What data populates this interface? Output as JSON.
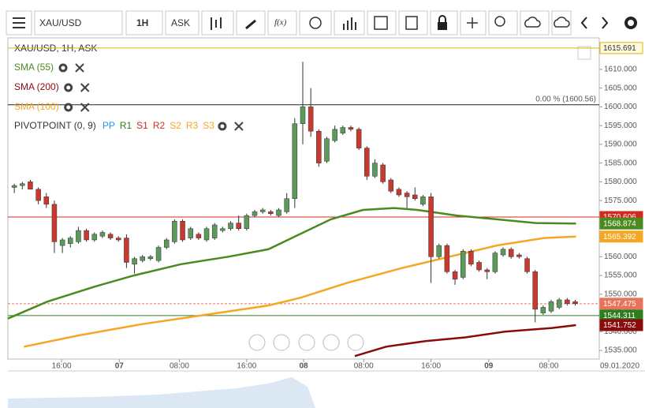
{
  "toolbar": {
    "symbol": "XAU/USD",
    "interval": "1H",
    "side": "ASK",
    "fx": "f(x)"
  },
  "chart_data": {
    "type": "candlestick",
    "title": "XAU/USD, 1H, ASK",
    "xlim": [
      -0.8,
      73
    ],
    "xticks": [
      {
        "value": 5.9,
        "label": "16:00"
      },
      {
        "value": 13.1,
        "label": "07"
      },
      {
        "value": 20.6,
        "label": "08:00"
      },
      {
        "value": 29.0,
        "label": "16:00"
      },
      {
        "value": 36.1,
        "label": "08"
      },
      {
        "value": 43.6,
        "label": "08:00"
      },
      {
        "value": 52.0,
        "label": "16:00"
      },
      {
        "value": 59.2,
        "label": "09"
      },
      {
        "value": 66.7,
        "label": "08:00"
      }
    ],
    "date_label": "09.01.2020",
    "ylim": [
      1532.7,
      1618.4
    ],
    "yticks": [
      {
        "value": 1535,
        "label": "1535.000"
      },
      {
        "value": 1540,
        "label": "1540.000"
      },
      {
        "value": 1545,
        "label": "1545.000"
      },
      {
        "value": 1550,
        "label": "1550.000"
      },
      {
        "value": 1555,
        "label": "1555.000"
      },
      {
        "value": 1560,
        "label": "1560.000"
      },
      {
        "value": 1565,
        "label": "1565.000"
      },
      {
        "value": 1570,
        "label": "1570.000"
      },
      {
        "value": 1575,
        "label": "1575.000"
      },
      {
        "value": 1580,
        "label": "1580.000"
      },
      {
        "value": 1585,
        "label": "1585.000"
      },
      {
        "value": 1590,
        "label": "1590.000"
      },
      {
        "value": 1595,
        "label": "1595.000"
      },
      {
        "value": 1600,
        "label": "1600.000"
      },
      {
        "value": 1605,
        "label": "1605.000"
      },
      {
        "value": 1610,
        "label": "1610.000"
      }
    ],
    "up_color": "#5b9a5b",
    "down_color": "#c8392f",
    "open": [
      1578.5,
      1579,
      1580,
      1578,
      1576,
      1574,
      1563,
      1563.5,
      1564,
      1567,
      1564.5,
      1565.5,
      1566,
      1565,
      1565,
      1558,
      1559,
      1559.5,
      1559,
      1562.5,
      1564,
      1569.5,
      1565,
      1566,
      1564.5,
      1565,
      1567,
      1567.5,
      1569,
      1567.5,
      1571,
      1572,
      1572,
      1571,
      1572,
      1575.5,
      1595.5,
      1600,
      1593.5,
      1585.5,
      1591,
      1593,
      1594.5,
      1594,
      1589,
      1581.5,
      1584.5,
      1580.5,
      1578,
      1577,
      1576.5,
      1574,
      1576,
      1560,
      1563,
      1556,
      1554.5,
      1561.5,
      1558.5,
      1556.5,
      1556,
      1560.5,
      1562,
      1560.5,
      1559.5,
      1556,
      1545,
      1545.5,
      1546.5,
      1548.5,
      1548
    ],
    "high": [
      1579.5,
      1580,
      1580.5,
      1578.5,
      1577,
      1575,
      1565,
      1565.5,
      1568,
      1567.5,
      1566.5,
      1567,
      1566.5,
      1565.5,
      1566,
      1560,
      1560.5,
      1560.5,
      1563,
      1565,
      1570,
      1570,
      1568,
      1566.5,
      1568,
      1569,
      1568,
      1569.5,
      1571,
      1571.5,
      1572.5,
      1573,
      1572.5,
      1573,
      1577,
      1597,
      1612,
      1605,
      1594,
      1592,
      1595,
      1595,
      1595,
      1594.5,
      1589.5,
      1586,
      1585,
      1581,
      1578.5,
      1577.5,
      1578.5,
      1576.5,
      1577,
      1563.5,
      1563.5,
      1556.5,
      1562,
      1562,
      1559,
      1557,
      1561.5,
      1562.5,
      1562.5,
      1561,
      1560,
      1556.5,
      1547,
      1548.5,
      1549,
      1549,
      1548.5
    ],
    "low": [
      1577,
      1578,
      1578,
      1574,
      1573,
      1561,
      1561,
      1562.5,
      1563.5,
      1564,
      1564,
      1565,
      1564.5,
      1564,
      1557,
      1555.5,
      1558.5,
      1559,
      1558.5,
      1562,
      1563.5,
      1564,
      1564.5,
      1564.5,
      1564,
      1564.5,
      1566.5,
      1567,
      1567,
      1567,
      1570.5,
      1571.5,
      1571,
      1570.5,
      1571.5,
      1573,
      1590,
      1592,
      1584,
      1585,
      1590.5,
      1592.5,
      1593.5,
      1588.5,
      1580.5,
      1581,
      1579.5,
      1577,
      1576,
      1573,
      1575,
      1573.5,
      1553,
      1559.5,
      1555.5,
      1552.5,
      1554,
      1557.5,
      1556,
      1554,
      1555.5,
      1560,
      1559.5,
      1559.5,
      1555.5,
      1542.5,
      1544.5,
      1545,
      1546,
      1547,
      1547
    ],
    "close": [
      1579,
      1579.5,
      1578,
      1575,
      1574,
      1564,
      1564.5,
      1565,
      1567,
      1564.5,
      1566,
      1566.5,
      1565,
      1564.5,
      1558.5,
      1559.5,
      1560,
      1560,
      1562.5,
      1564.5,
      1569.5,
      1564.5,
      1567.5,
      1565,
      1567.5,
      1568.5,
      1567.5,
      1569,
      1567.5,
      1571,
      1572,
      1572.5,
      1571.5,
      1572.5,
      1575.5,
      1595.5,
      1600,
      1593.5,
      1585,
      1591.5,
      1594,
      1594.5,
      1594,
      1589,
      1581.5,
      1585,
      1580,
      1577.5,
      1576.5,
      1576,
      1575.5,
      1576,
      1560,
      1563,
      1556,
      1554,
      1561.5,
      1558,
      1556.5,
      1556,
      1561,
      1562,
      1560,
      1560,
      1556,
      1546,
      1546.5,
      1548,
      1548.5,
      1547.5,
      1547.5
    ],
    "lines": [
      {
        "name": "SMA (55)",
        "color": "#4a8a1e",
        "last": 1568.874,
        "x": [
          -0.8,
          4.1,
          10.0,
          14.9,
          20.8,
          26.7,
          31.7,
          35.6,
          39.5,
          43.5,
          47.4,
          50.3,
          55.2,
          60.2,
          65.1,
          70.1
        ],
        "values": [
          1543.5,
          1548,
          1552,
          1555,
          1558,
          1560,
          1562,
          1566,
          1570,
          1572.5,
          1573,
          1572.5,
          1571,
          1570,
          1569,
          1568.874
        ]
      },
      {
        "name": "SMA (200)",
        "color": "#8b0a0a",
        "last": 1541.752,
        "x": [
          42.5,
          46.4,
          51.3,
          56.3,
          61.2,
          67.1,
          70.1
        ],
        "values": [
          1533.5,
          1536,
          1537.5,
          1538.5,
          1540,
          1541,
          1541.752
        ]
      },
      {
        "name": "SMA (100)",
        "color": "#f5a623",
        "last": 1565.392,
        "x": [
          1.2,
          8.0,
          15.9,
          23.8,
          31.7,
          35.6,
          41.5,
          48.4,
          54.3,
          60.2,
          66.1,
          70.1
        ],
        "values": [
          1536,
          1539,
          1542,
          1544.5,
          1547,
          1549,
          1553,
          1557,
          1560,
          1563,
          1565,
          1565.392
        ]
      }
    ],
    "levels": [
      {
        "value": 1615.691,
        "color": "#e0b400"
      },
      {
        "value": 1570.606,
        "color": "#d42a1e"
      },
      {
        "value": 1547.475,
        "color": "#e8735a",
        "dashed": true
      },
      {
        "value": 1544.311,
        "color": "#2e7d1e"
      }
    ],
    "fib_level": {
      "value": 1600.56,
      "label": "0.00 % (1600.56)"
    },
    "pivot": {
      "name": "PIVOTPOINT (0, 9)",
      "items": [
        {
          "label": "PP",
          "color": "#2196f3"
        },
        {
          "label": "R1",
          "color": "#2e7d1e"
        },
        {
          "label": "S1",
          "color": "#c62828"
        },
        {
          "label": "R2",
          "color": "#d32f2f"
        },
        {
          "label": "S2",
          "color": "#f5a623"
        },
        {
          "label": "R3",
          "color": "#f5a623"
        },
        {
          "label": "S3",
          "color": "#f5a623"
        }
      ]
    }
  }
}
